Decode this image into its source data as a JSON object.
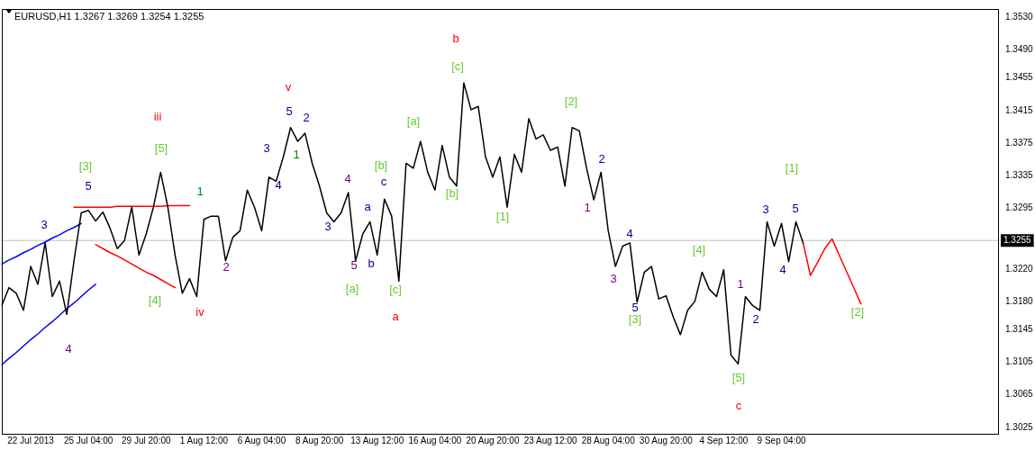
{
  "chart_data": {
    "type": "line",
    "title": "EURUSD,H1 1.3267 1.3269 1.3254 1.3255",
    "marker": "none",
    "line_style": "solid",
    "grid": false,
    "legend": false,
    "categories": [
      null,
      null,
      null,
      null,
      "22 Jul 2013",
      null,
      null,
      null,
      null,
      null,
      null,
      null,
      "25 Jul 04:00",
      null,
      null,
      null,
      null,
      null,
      null,
      null,
      "29 Jul 20:00",
      null,
      null,
      null,
      null,
      null,
      null,
      null,
      "1 Aug 12:00",
      null,
      null,
      null,
      null,
      null,
      null,
      null,
      "6 Aug 04:00",
      null,
      null,
      null,
      null,
      null,
      null,
      null,
      "8 Aug 20:00",
      null,
      null,
      null,
      null,
      null,
      null,
      null,
      "13 Aug 12:00",
      null,
      null,
      null,
      null,
      null,
      null,
      null,
      "16 Aug 04:00",
      null,
      null,
      null,
      null,
      null,
      null,
      null,
      "20 Aug 20:00",
      null,
      null,
      null,
      null,
      null,
      null,
      null,
      "23 Aug 12:00",
      null,
      null,
      null,
      null,
      null,
      null,
      null,
      "28 Aug 04:00",
      null,
      null,
      null,
      null,
      null,
      null,
      null,
      "30 Aug 20:00",
      null,
      null,
      null,
      null,
      null,
      null,
      null,
      "4 Sep 12:00",
      null,
      null,
      null,
      null,
      null,
      null,
      null,
      "9 Sep 04:00",
      null,
      null,
      null,
      null,
      null,
      null,
      null,
      null,
      null,
      null,
      null,
      null,
      null,
      null,
      null,
      null,
      null,
      null,
      null,
      null,
      null,
      null,
      null,
      null,
      null,
      null,
      null,
      null,
      null,
      null
    ],
    "ylim": [
      1.3017,
      1.354
    ],
    "yticks": [
      {
        "value": 1.3025,
        "label": "1.3025"
      },
      {
        "value": 1.3065,
        "label": "1.3065"
      },
      {
        "value": 1.3105,
        "label": "1.3105"
      },
      {
        "value": 1.3145,
        "label": "1.3145"
      },
      {
        "value": 1.318,
        "label": "1.3180"
      },
      {
        "value": 1.322,
        "label": "1.3220"
      },
      {
        "value": 1.3295,
        "label": "1.3295"
      },
      {
        "value": 1.3335,
        "label": "1.3335"
      },
      {
        "value": 1.3375,
        "label": "1.3375"
      },
      {
        "value": 1.3415,
        "label": "1.3415"
      },
      {
        "value": 1.3455,
        "label": "1.3455"
      },
      {
        "value": 1.349,
        "label": "1.3490"
      },
      {
        "value": 1.353,
        "label": "1.3530"
      }
    ],
    "ref_lines": [
      {
        "axis": "y",
        "value": 1.3255,
        "label": "1.3255",
        "color": "#c0c0c0"
      }
    ],
    "series": [
      {
        "color": "#000000",
        "values": [
          1.3175,
          1.3197,
          1.319,
          1.3169,
          1.3223,
          1.3201,
          1.3252,
          1.3186,
          1.3205,
          1.3164,
          1.323,
          1.3289,
          1.3292,
          1.3279,
          1.329,
          1.327,
          1.3245,
          1.3255,
          1.3296,
          1.3237,
          1.3263,
          1.3296,
          1.3339,
          1.3296,
          1.3237,
          1.319,
          1.3208,
          1.3186,
          1.3281,
          1.3285,
          1.3285,
          1.323,
          1.3259,
          1.3267,
          1.3317,
          1.3296,
          1.3267,
          1.3333,
          1.3328,
          1.3358,
          1.3394,
          1.3377,
          1.3387,
          1.335,
          1.3322,
          1.3289,
          1.3278,
          1.3289,
          1.3314,
          1.323,
          1.3263,
          1.3278,
          1.3237,
          1.3306,
          1.3285,
          1.3205,
          1.335,
          1.3344,
          1.3377,
          1.3339,
          1.3317,
          1.3372,
          1.3333,
          1.3322,
          1.3449,
          1.3416,
          1.342,
          1.3358,
          1.3333,
          1.3358,
          1.3296,
          1.3361,
          1.3339,
          1.3405,
          1.338,
          1.3385,
          1.3366,
          1.337,
          1.3322,
          1.3394,
          1.339,
          1.3344,
          1.3305,
          1.3339,
          1.3267,
          1.3223,
          1.3248,
          1.3252,
          1.3179,
          1.3216,
          1.3223,
          1.3183,
          1.3187,
          1.3161,
          1.3139,
          1.3169,
          1.318,
          1.3216,
          1.3195,
          1.3186,
          1.3219,
          1.3114,
          1.3103,
          1.3186,
          1.3175,
          1.3169,
          1.3278,
          1.3248,
          1.3276,
          1.3229,
          1.3278,
          1.3252,
          null,
          null,
          null,
          null,
          null,
          null,
          null,
          null,
          null,
          null,
          null,
          null,
          null,
          null,
          null,
          null,
          null,
          null,
          null,
          null,
          null,
          null,
          null,
          null,
          null,
          null,
          null
        ]
      },
      {
        "color": "#ff0000",
        "values": [
          null,
          null,
          null,
          null,
          null,
          null,
          null,
          null,
          null,
          null,
          null,
          null,
          null,
          null,
          null,
          null,
          null,
          null,
          null,
          null,
          null,
          null,
          null,
          null,
          null,
          null,
          null,
          null,
          null,
          null,
          null,
          null,
          null,
          null,
          null,
          null,
          null,
          null,
          null,
          null,
          null,
          null,
          null,
          null,
          null,
          null,
          null,
          null,
          null,
          null,
          null,
          null,
          null,
          null,
          null,
          null,
          null,
          null,
          null,
          null,
          null,
          null,
          null,
          null,
          null,
          null,
          null,
          null,
          null,
          null,
          null,
          null,
          null,
          null,
          null,
          null,
          null,
          null,
          null,
          null,
          null,
          null,
          null,
          null,
          null,
          null,
          null,
          null,
          null,
          null,
          null,
          null,
          null,
          null,
          null,
          null,
          null,
          null,
          null,
          null,
          null,
          null,
          null,
          null,
          null,
          null,
          null,
          null,
          null,
          null,
          null,
          1.3252,
          1.3212,
          1.3228,
          1.3245,
          1.3257,
          1.3237,
          1.3217,
          1.3197,
          1.3177,
          null,
          null,
          null,
          null,
          null,
          null,
          null,
          null,
          null,
          null,
          null,
          null,
          null,
          null,
          null,
          null,
          null,
          null,
          null
        ]
      },
      {
        "color": "#ff0000",
        "values": [
          null,
          null,
          null,
          null,
          null,
          null,
          null,
          null,
          null,
          null,
          1.3296,
          1.3296,
          1.3296,
          1.3296,
          1.3296,
          1.3296,
          1.3297,
          1.3297,
          1.3297,
          1.3297,
          1.3297,
          1.3297,
          1.3297,
          1.3298,
          1.3298,
          1.3298,
          1.3298,
          null,
          null,
          null,
          null,
          null,
          null,
          null,
          null,
          null,
          null,
          null,
          null,
          null,
          null,
          null,
          null,
          null,
          null,
          null,
          null,
          null,
          null,
          null,
          null,
          null,
          null,
          null,
          null,
          null,
          null,
          null,
          null,
          null,
          null,
          null,
          null,
          null,
          null,
          null,
          null,
          null,
          null,
          null,
          null,
          null,
          null,
          null,
          null,
          null,
          null,
          null,
          null,
          null,
          null,
          null,
          null,
          null,
          null,
          null,
          null,
          null,
          null,
          null,
          null,
          null,
          null,
          null,
          null,
          null,
          null,
          null,
          null,
          null,
          null,
          null,
          null,
          null,
          null,
          null,
          null,
          null,
          null,
          null,
          null,
          null,
          null,
          null,
          null,
          null,
          null,
          null,
          null,
          null,
          null,
          null,
          null,
          null,
          null,
          null,
          null,
          null,
          null,
          null,
          null,
          null,
          null,
          null,
          null,
          null,
          null,
          null,
          null
        ]
      },
      {
        "color": "#ff0000",
        "values": [
          null,
          null,
          null,
          null,
          null,
          null,
          null,
          null,
          null,
          null,
          null,
          null,
          null,
          1.325,
          1.3245,
          1.324,
          1.3236,
          1.3231,
          1.3226,
          1.3221,
          1.3216,
          1.3212,
          1.3207,
          1.3202,
          1.3197,
          null,
          null,
          null,
          null,
          null,
          null,
          null,
          null,
          null,
          null,
          null,
          null,
          null,
          null,
          null,
          null,
          null,
          null,
          null,
          null,
          null,
          null,
          null,
          null,
          null,
          null,
          null,
          null,
          null,
          null,
          null,
          null,
          null,
          null,
          null,
          null,
          null,
          null,
          null,
          null,
          null,
          null,
          null,
          null,
          null,
          null,
          null,
          null,
          null,
          null,
          null,
          null,
          null,
          null,
          null,
          null,
          null,
          null,
          null,
          null,
          null,
          null,
          null,
          null,
          null,
          null,
          null,
          null,
          null,
          null,
          null,
          null,
          null,
          null,
          null,
          null,
          null,
          null,
          null,
          null,
          null,
          null,
          null,
          null,
          null,
          null,
          null,
          null,
          null,
          null,
          null,
          null,
          null,
          null,
          null,
          null,
          null,
          null,
          null,
          null,
          null,
          null,
          null,
          null,
          null,
          null,
          null,
          null,
          null,
          null,
          null,
          null,
          null,
          null
        ]
      },
      {
        "color": "#0000ff",
        "values": [
          1.3226,
          1.3231,
          1.3235,
          1.324,
          1.3244,
          1.3249,
          1.3253,
          1.3258,
          1.3262,
          1.3267,
          1.3271,
          1.3276,
          null,
          null,
          null,
          null,
          null,
          null,
          null,
          null,
          null,
          null,
          null,
          null,
          null,
          null,
          null,
          null,
          null,
          null,
          null,
          null,
          null,
          null,
          null,
          null,
          null,
          null,
          null,
          null,
          null,
          null,
          null,
          null,
          null,
          null,
          null,
          null,
          null,
          null,
          null,
          null,
          null,
          null,
          null,
          null,
          null,
          null,
          null,
          null,
          null,
          null,
          null,
          null,
          null,
          null,
          null,
          null,
          null,
          null,
          null,
          null,
          null,
          null,
          null,
          null,
          null,
          null,
          null,
          null,
          null,
          null,
          null,
          null,
          null,
          null,
          null,
          null,
          null,
          null,
          null,
          null,
          null,
          null,
          null,
          null,
          null,
          null,
          null,
          null,
          null,
          null,
          null,
          null,
          null,
          null,
          null,
          null,
          null,
          null,
          null,
          null,
          null,
          null,
          null,
          null,
          null,
          null,
          null,
          null,
          null,
          null,
          null,
          null,
          null,
          null,
          null,
          null,
          null,
          null,
          null,
          null,
          null,
          null,
          null,
          null,
          null,
          null,
          null
        ]
      },
      {
        "color": "#0000ff",
        "values": [
          1.3102,
          1.311,
          1.3117,
          1.3125,
          1.3133,
          1.314,
          1.3148,
          1.3155,
          1.3163,
          1.3171,
          1.3178,
          1.3186,
          1.3194,
          1.3201,
          null,
          null,
          null,
          null,
          null,
          null,
          null,
          null,
          null,
          null,
          null,
          null,
          null,
          null,
          null,
          null,
          null,
          null,
          null,
          null,
          null,
          null,
          null,
          null,
          null,
          null,
          null,
          null,
          null,
          null,
          null,
          null,
          null,
          null,
          null,
          null,
          null,
          null,
          null,
          null,
          null,
          null,
          null,
          null,
          null,
          null,
          null,
          null,
          null,
          null,
          null,
          null,
          null,
          null,
          null,
          null,
          null,
          null,
          null,
          null,
          null,
          null,
          null,
          null,
          null,
          null,
          null,
          null,
          null,
          null,
          null,
          null,
          null,
          null,
          null,
          null,
          null,
          null,
          null,
          null,
          null,
          null,
          null,
          null,
          null,
          null,
          null,
          null,
          null,
          null,
          null,
          null,
          null,
          null,
          null,
          null,
          null,
          null,
          null,
          null,
          null,
          null,
          null,
          null,
          null,
          null,
          null,
          null,
          null,
          null,
          null,
          null,
          null,
          null,
          null,
          null,
          null,
          null,
          null,
          null,
          null,
          null,
          null,
          null,
          null
        ]
      }
    ],
    "annotations": [
      "iii",
      "v",
      "iv",
      "a",
      "b",
      "c",
      "[3]",
      "[5]",
      "[4]",
      "[a]",
      "[c]",
      "[b]",
      "[a]",
      "[c]",
      "[b]",
      "[1]",
      "[2]",
      "[3]",
      "[4]",
      "[5]",
      "[1]",
      "[2]",
      "1",
      "1",
      "3",
      "5",
      "4",
      "2",
      "3",
      "4",
      "5",
      "2",
      "3",
      "4",
      "5",
      "a",
      "b",
      "c",
      "1",
      "2",
      "3",
      "4",
      "5",
      "1",
      "2",
      "3",
      "4",
      "5"
    ]
  }
}
